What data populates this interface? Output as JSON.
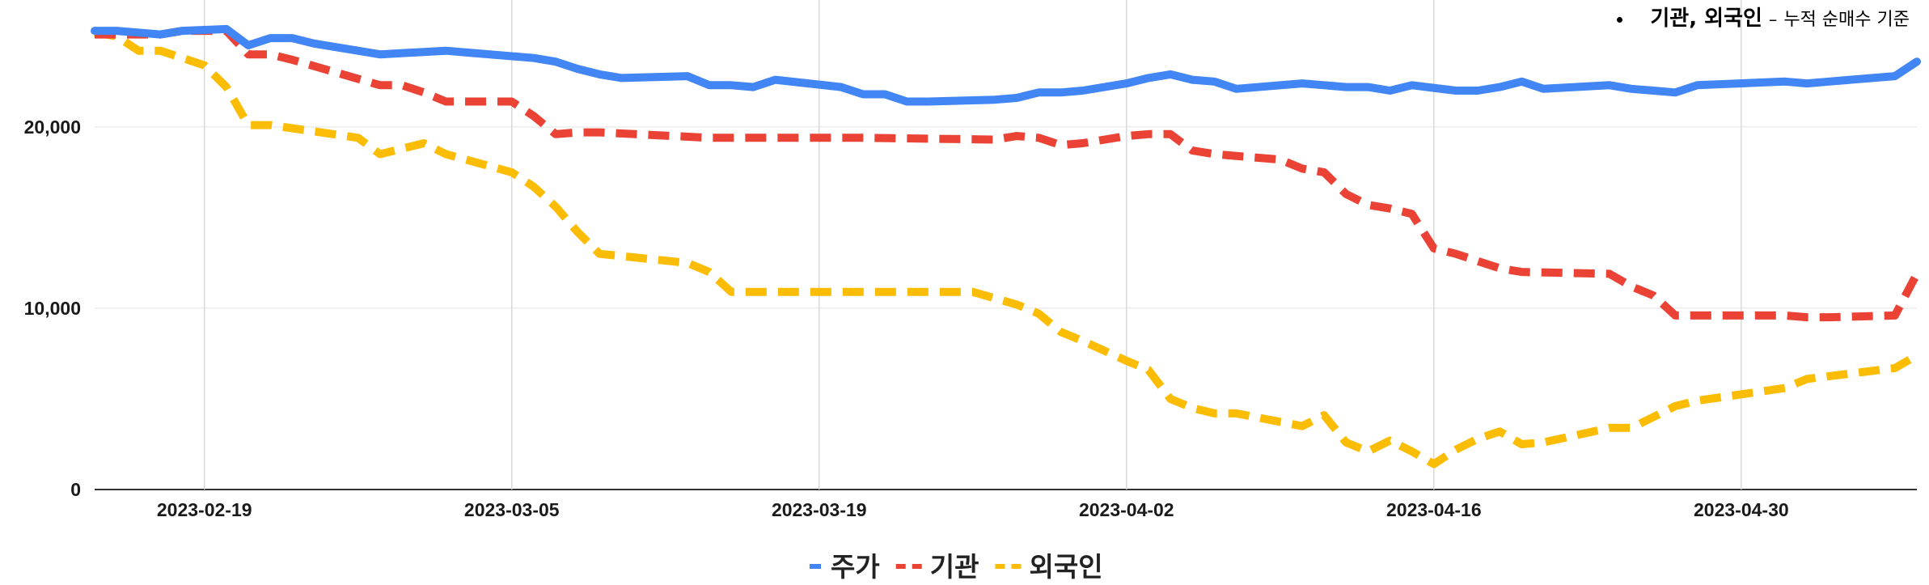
{
  "note": {
    "strong": "기관, 외국인",
    "dash": "–",
    "basis": "누적 순매수 기준"
  },
  "chart_data": {
    "type": "line",
    "title": "",
    "xlabel": "",
    "ylabel": "",
    "ylim": [
      0,
      27000
    ],
    "x_tick_labels": [
      "2023-02-19",
      "2023-03-05",
      "2023-03-19",
      "2023-04-02",
      "2023-04-16",
      "2023-04-30"
    ],
    "y_tick_labels": [
      "0",
      "10,000",
      "20,000"
    ],
    "y_ticks": [
      0,
      10000,
      20000
    ],
    "grid": {
      "x": true,
      "y": true
    },
    "legend_position": "bottom",
    "x_start": "2023-02-14",
    "x_end": "2023-05-08",
    "series": [
      {
        "name": "주가",
        "color": "#4285F4",
        "style": "solid",
        "points": [
          [
            "2023-02-14",
            25300
          ],
          [
            "2023-02-15",
            25300
          ],
          [
            "2023-02-16",
            25200
          ],
          [
            "2023-02-17",
            25100
          ],
          [
            "2023-02-18",
            25300
          ],
          [
            "2023-02-20",
            25400
          ],
          [
            "2023-02-21",
            24500
          ],
          [
            "2023-02-22",
            24900
          ],
          [
            "2023-02-23",
            24900
          ],
          [
            "2023-02-24",
            24600
          ],
          [
            "2023-02-27",
            24000
          ],
          [
            "2023-03-02",
            24200
          ],
          [
            "2023-03-03",
            24100
          ],
          [
            "2023-03-06",
            23800
          ],
          [
            "2023-03-07",
            23600
          ],
          [
            "2023-03-08",
            23200
          ],
          [
            "2023-03-09",
            22900
          ],
          [
            "2023-03-10",
            22700
          ],
          [
            "2023-03-13",
            22800
          ],
          [
            "2023-03-14",
            22300
          ],
          [
            "2023-03-15",
            22300
          ],
          [
            "2023-03-16",
            22200
          ],
          [
            "2023-03-17",
            22600
          ],
          [
            "2023-03-20",
            22200
          ],
          [
            "2023-03-21",
            21800
          ],
          [
            "2023-03-22",
            21800
          ],
          [
            "2023-03-23",
            21400
          ],
          [
            "2023-03-24",
            21400
          ],
          [
            "2023-03-27",
            21500
          ],
          [
            "2023-03-28",
            21600
          ],
          [
            "2023-03-29",
            21900
          ],
          [
            "2023-03-30",
            21900
          ],
          [
            "2023-03-31",
            22000
          ],
          [
            "2023-04-02",
            22400
          ],
          [
            "2023-04-03",
            22700
          ],
          [
            "2023-04-04",
            22900
          ],
          [
            "2023-04-05",
            22600
          ],
          [
            "2023-04-06",
            22500
          ],
          [
            "2023-04-07",
            22100
          ],
          [
            "2023-04-10",
            22400
          ],
          [
            "2023-04-11",
            22300
          ],
          [
            "2023-04-12",
            22200
          ],
          [
            "2023-04-13",
            22200
          ],
          [
            "2023-04-14",
            22000
          ],
          [
            "2023-04-15",
            22300
          ],
          [
            "2023-04-17",
            22000
          ],
          [
            "2023-04-18",
            22000
          ],
          [
            "2023-04-19",
            22200
          ],
          [
            "2023-04-20",
            22500
          ],
          [
            "2023-04-21",
            22100
          ],
          [
            "2023-04-24",
            22300
          ],
          [
            "2023-04-25",
            22100
          ],
          [
            "2023-04-26",
            22000
          ],
          [
            "2023-04-27",
            21900
          ],
          [
            "2023-04-28",
            22300
          ],
          [
            "2023-05-02",
            22500
          ],
          [
            "2023-05-03",
            22400
          ],
          [
            "2023-05-04",
            22500
          ],
          [
            "2023-05-07",
            22800
          ],
          [
            "2023-05-08",
            23600
          ]
        ]
      },
      {
        "name": "기관",
        "color": "#EA4335",
        "style": "dashed",
        "points": [
          [
            "2023-02-14",
            25100
          ],
          [
            "2023-02-15",
            25100
          ],
          [
            "2023-02-16",
            25100
          ],
          [
            "2023-02-17",
            25100
          ],
          [
            "2023-02-18",
            25300
          ],
          [
            "2023-02-20",
            25300
          ],
          [
            "2023-02-21",
            24000
          ],
          [
            "2023-02-22",
            24000
          ],
          [
            "2023-02-23",
            23700
          ],
          [
            "2023-02-27",
            22300
          ],
          [
            "2023-02-28",
            22300
          ],
          [
            "2023-03-01",
            21900
          ],
          [
            "2023-03-02",
            21400
          ],
          [
            "2023-03-03",
            21400
          ],
          [
            "2023-03-05",
            21400
          ],
          [
            "2023-03-06",
            20600
          ],
          [
            "2023-03-07",
            19600
          ],
          [
            "2023-03-08",
            19700
          ],
          [
            "2023-03-09",
            19700
          ],
          [
            "2023-03-14",
            19400
          ],
          [
            "2023-03-15",
            19400
          ],
          [
            "2023-03-19",
            19400
          ],
          [
            "2023-03-21",
            19400
          ],
          [
            "2023-03-27",
            19300
          ],
          [
            "2023-03-28",
            19500
          ],
          [
            "2023-03-29",
            19400
          ],
          [
            "2023-03-30",
            19000
          ],
          [
            "2023-03-31",
            19100
          ],
          [
            "2023-04-02",
            19500
          ],
          [
            "2023-04-03",
            19600
          ],
          [
            "2023-04-04",
            19600
          ],
          [
            "2023-04-05",
            18700
          ],
          [
            "2023-04-06",
            18500
          ],
          [
            "2023-04-09",
            18200
          ],
          [
            "2023-04-10",
            17700
          ],
          [
            "2023-04-11",
            17500
          ],
          [
            "2023-04-12",
            16300
          ],
          [
            "2023-04-13",
            15700
          ],
          [
            "2023-04-14",
            15500
          ],
          [
            "2023-04-15",
            15200
          ],
          [
            "2023-04-16",
            13300
          ],
          [
            "2023-04-17",
            13000
          ],
          [
            "2023-04-18",
            12600
          ],
          [
            "2023-04-19",
            12200
          ],
          [
            "2023-04-20",
            12000
          ],
          [
            "2023-04-24",
            11900
          ],
          [
            "2023-04-25",
            11200
          ],
          [
            "2023-04-26",
            10700
          ],
          [
            "2023-04-27",
            9600
          ],
          [
            "2023-04-28",
            9600
          ],
          [
            "2023-05-02",
            9600
          ],
          [
            "2023-05-03",
            9500
          ],
          [
            "2023-05-04",
            9500
          ],
          [
            "2023-05-07",
            9600
          ],
          [
            "2023-05-08",
            11900
          ]
        ]
      },
      {
        "name": "외국인",
        "color": "#FBBC04",
        "style": "dashed",
        "points": [
          [
            "2023-02-14",
            25200
          ],
          [
            "2023-02-15",
            25000
          ],
          [
            "2023-02-16",
            24200
          ],
          [
            "2023-02-17",
            24200
          ],
          [
            "2023-02-18",
            23800
          ],
          [
            "2023-02-19",
            23400
          ],
          [
            "2023-02-20",
            22200
          ],
          [
            "2023-02-21",
            20100
          ],
          [
            "2023-02-22",
            20100
          ],
          [
            "2023-02-26",
            19400
          ],
          [
            "2023-02-27",
            18500
          ],
          [
            "2023-03-01",
            19100
          ],
          [
            "2023-03-02",
            18500
          ],
          [
            "2023-03-05",
            17500
          ],
          [
            "2023-03-06",
            16700
          ],
          [
            "2023-03-07",
            15600
          ],
          [
            "2023-03-08",
            14200
          ],
          [
            "2023-03-09",
            13000
          ],
          [
            "2023-03-13",
            12500
          ],
          [
            "2023-03-14",
            12000
          ],
          [
            "2023-03-15",
            10900
          ],
          [
            "2023-03-19",
            10900
          ],
          [
            "2023-03-26",
            10900
          ],
          [
            "2023-03-28",
            10200
          ],
          [
            "2023-03-29",
            9700
          ],
          [
            "2023-03-30",
            8700
          ],
          [
            "2023-03-31",
            8200
          ],
          [
            "2023-04-02",
            7100
          ],
          [
            "2023-04-03",
            6600
          ],
          [
            "2023-04-04",
            5000
          ],
          [
            "2023-04-05",
            4500
          ],
          [
            "2023-04-06",
            4200
          ],
          [
            "2023-04-07",
            4200
          ],
          [
            "2023-04-10",
            3500
          ],
          [
            "2023-04-11",
            4100
          ],
          [
            "2023-04-12",
            2600
          ],
          [
            "2023-04-13",
            2100
          ],
          [
            "2023-04-14",
            2700
          ],
          [
            "2023-04-15",
            2100
          ],
          [
            "2023-04-16",
            1400
          ],
          [
            "2023-04-17",
            2200
          ],
          [
            "2023-04-18",
            2800
          ],
          [
            "2023-04-19",
            3200
          ],
          [
            "2023-04-20",
            2500
          ],
          [
            "2023-04-21",
            2600
          ],
          [
            "2023-04-24",
            3400
          ],
          [
            "2023-04-25",
            3400
          ],
          [
            "2023-04-27",
            4600
          ],
          [
            "2023-04-28",
            4900
          ],
          [
            "2023-05-02",
            5600
          ],
          [
            "2023-05-03",
            6100
          ],
          [
            "2023-05-07",
            6700
          ],
          [
            "2023-05-08",
            7400
          ]
        ]
      }
    ]
  }
}
